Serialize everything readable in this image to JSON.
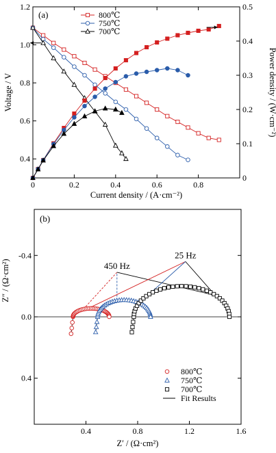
{
  "chart_data": [
    {
      "type": "line",
      "panel_label": "(a)",
      "xlabel": "Current density / (A·cm⁻²)",
      "ylabel": "Voltage / V",
      "y2label": "Power density / (W·cm⁻²)",
      "xlim": [
        0,
        1.0
      ],
      "ylim": [
        0.3,
        1.2
      ],
      "y2lim": [
        0,
        0.5
      ],
      "x_ticks": [
        "0",
        "0.2",
        "0.4",
        "0.6",
        "0.8"
      ],
      "x_tick_values": [
        0,
        0.2,
        0.4,
        0.6,
        0.8
      ],
      "y_ticks": [
        "0.4",
        "0.6",
        "0.8",
        "1.0",
        "1.2"
      ],
      "y_tick_values": [
        0.4,
        0.6,
        0.8,
        1.0,
        1.2
      ],
      "y2_ticks": [
        "0",
        "0.1",
        "0.2",
        "0.3",
        "0.4",
        "0.5"
      ],
      "y2_tick_values": [
        0,
        0.1,
        0.2,
        0.3,
        0.4,
        0.5
      ],
      "legend_position": "top-center",
      "grid": false,
      "series": [
        {
          "name": "800℃",
          "color": "#d42020",
          "marker": "square",
          "axis": "voltage",
          "x": [
            0,
            0.05,
            0.1,
            0.15,
            0.2,
            0.25,
            0.3,
            0.35,
            0.4,
            0.45,
            0.5,
            0.55,
            0.6,
            0.65,
            0.7,
            0.75,
            0.8,
            0.85,
            0.9
          ],
          "y": [
            1.09,
            1.05,
            1.01,
            0.975,
            0.94,
            0.905,
            0.87,
            0.835,
            0.8,
            0.765,
            0.73,
            0.695,
            0.66,
            0.625,
            0.595,
            0.565,
            0.535,
            0.51,
            0.5
          ]
        },
        {
          "name": "750℃",
          "color": "#2a5caa",
          "marker": "circle",
          "axis": "voltage",
          "x": [
            0,
            0.05,
            0.1,
            0.15,
            0.2,
            0.25,
            0.3,
            0.35,
            0.4,
            0.45,
            0.5,
            0.55,
            0.6,
            0.65,
            0.7,
            0.75
          ],
          "y": [
            1.09,
            1.03,
            0.985,
            0.935,
            0.885,
            0.84,
            0.79,
            0.745,
            0.7,
            0.66,
            0.61,
            0.56,
            0.51,
            0.465,
            0.42,
            0.395
          ]
        },
        {
          "name": "700℃",
          "color": "#000000",
          "marker": "triangle",
          "axis": "voltage",
          "x": [
            0,
            0.05,
            0.1,
            0.15,
            0.2,
            0.25,
            0.3,
            0.35,
            0.4,
            0.43,
            0.45
          ],
          "y": [
            1.09,
            1.01,
            0.93,
            0.86,
            0.79,
            0.72,
            0.65,
            0.58,
            0.47,
            0.43,
            0.4
          ]
        },
        {
          "name": "800℃",
          "color": "#d42020",
          "marker": "square-filled",
          "axis": "power",
          "x": [
            0,
            0.025,
            0.05,
            0.1,
            0.15,
            0.2,
            0.25,
            0.3,
            0.35,
            0.4,
            0.45,
            0.5,
            0.55,
            0.6,
            0.65,
            0.7,
            0.75,
            0.8,
            0.85,
            0.9
          ],
          "y": [
            0,
            0.026,
            0.052,
            0.101,
            0.146,
            0.188,
            0.226,
            0.261,
            0.292,
            0.32,
            0.344,
            0.365,
            0.382,
            0.396,
            0.407,
            0.417,
            0.424,
            0.43,
            0.434,
            0.444
          ]
        },
        {
          "name": "750℃",
          "color": "#2a5caa",
          "marker": "circle-filled",
          "axis": "power",
          "x": [
            0,
            0.025,
            0.05,
            0.1,
            0.15,
            0.2,
            0.25,
            0.3,
            0.35,
            0.4,
            0.45,
            0.5,
            0.55,
            0.6,
            0.65,
            0.7,
            0.75
          ],
          "y": [
            0,
            0.026,
            0.052,
            0.099,
            0.14,
            0.177,
            0.21,
            0.237,
            0.261,
            0.28,
            0.297,
            0.305,
            0.31,
            0.315,
            0.32,
            0.315,
            0.3
          ]
        },
        {
          "name": "700℃",
          "color": "#000000",
          "marker": "triangle-filled",
          "axis": "power",
          "x": [
            0,
            0.025,
            0.05,
            0.1,
            0.15,
            0.2,
            0.25,
            0.3,
            0.35,
            0.4,
            0.43
          ],
          "y": [
            0,
            0.025,
            0.051,
            0.093,
            0.129,
            0.158,
            0.18,
            0.195,
            0.203,
            0.2,
            0.19
          ]
        }
      ],
      "annotations": [
        {
          "type": "arrow",
          "direction": "left",
          "target_axis": "voltage",
          "at": [
            0.04,
            1.01
          ]
        },
        {
          "type": "arrow",
          "direction": "right",
          "target_axis": "power",
          "at": [
            0.84,
            0.44
          ]
        }
      ]
    },
    {
      "type": "scatter",
      "panel_label": "(b)",
      "xlabel": "Z′ / (Ω·cm²)",
      "ylabel": "Z″ / (Ω·cm²)",
      "xlim": [
        0,
        1.6
      ],
      "ylim": [
        0.7,
        -0.7
      ],
      "y_inverted": true,
      "x_ticks": [
        "0.4",
        "0.8",
        "1.2",
        "1.6"
      ],
      "x_tick_values": [
        0.4,
        0.8,
        1.2,
        1.6
      ],
      "y_ticks": [
        "-0.4",
        "0.0",
        "0.4"
      ],
      "y_tick_values": [
        -0.4,
        0.0,
        0.4
      ],
      "legend_position": "bottom-right",
      "grid": false,
      "series": [
        {
          "name": "800℃",
          "color": "#d42020",
          "marker": "circle",
          "re_start": 0.3,
          "re_end": 0.58,
          "peak": 0.055,
          "tail": 0.11
        },
        {
          "name": "750℃",
          "color": "#2a5caa",
          "marker": "triangle",
          "re_start": 0.49,
          "re_end": 0.9,
          "peak": 0.11,
          "tail": 0.1
        },
        {
          "name": "700℃",
          "color": "#000000",
          "marker": "square",
          "re_start": 0.77,
          "re_end": 1.51,
          "peak": 0.2,
          "tail": 0.1
        },
        {
          "name": "Fit Results",
          "color": "#000000",
          "marker": "line"
        }
      ],
      "annotations": [
        {
          "text": "450 Hz",
          "at": [
            0.64,
            -0.29
          ]
        },
        {
          "text": "25 Hz",
          "at": [
            1.17,
            -0.36
          ]
        }
      ],
      "guide_lines": [
        {
          "color": "#d42020",
          "dash": true,
          "from": [
            0.38,
            -0.05
          ],
          "to": [
            0.64,
            -0.29
          ]
        },
        {
          "color": "#2a5caa",
          "dash": true,
          "from": [
            0.64,
            -0.11
          ],
          "to": [
            0.64,
            -0.29
          ]
        },
        {
          "color": "#000000",
          "dash": false,
          "from": [
            0.64,
            -0.29
          ],
          "to": [
            1.4,
            -0.14
          ]
        },
        {
          "color": "#d42020",
          "dash": false,
          "from": [
            0.43,
            -0.06
          ],
          "to": [
            1.17,
            -0.36
          ]
        },
        {
          "color": "#2a5caa",
          "dash": false,
          "from": [
            0.8,
            -0.08
          ],
          "to": [
            1.17,
            -0.36
          ]
        },
        {
          "color": "#000000",
          "dash": false,
          "from": [
            1.17,
            -0.36
          ],
          "to": [
            1.4,
            -0.14
          ]
        }
      ]
    }
  ]
}
